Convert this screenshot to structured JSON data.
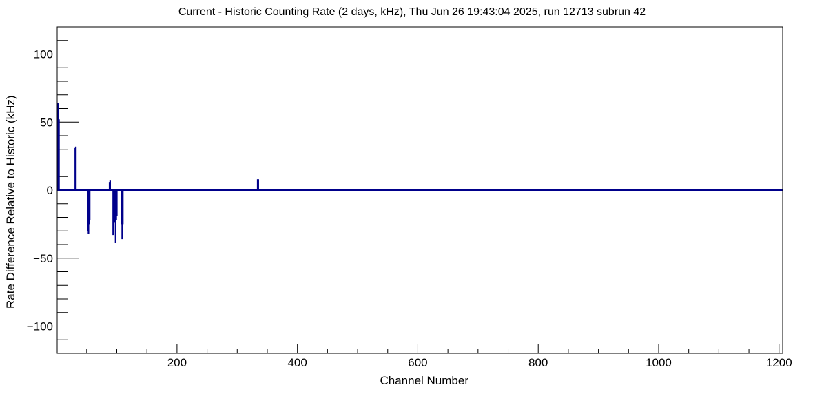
{
  "chart_data": {
    "type": "bar",
    "title": "Current - Historic Counting Rate (2 days, kHz), Thu Jun 26 19:43:04 2025, run 12713 subrun 42",
    "xlabel": "Channel Number",
    "ylabel": "Rate Difference Relative to Historic (kHz)",
    "xlim": [
      1,
      1206
    ],
    "ylim": [
      -120,
      120
    ],
    "x_ticks": [
      200,
      400,
      600,
      800,
      1000,
      1200
    ],
    "y_ticks": [
      -100,
      -50,
      0,
      50,
      100
    ],
    "x_tick_labels": [
      "200",
      "400",
      "600",
      "800",
      "1000",
      "1200"
    ],
    "y_tick_labels": [
      "−100",
      "−50",
      "0",
      "50",
      "100"
    ],
    "grid": false,
    "legend": "none",
    "series_color": "#00008b",
    "points": [
      {
        "x": 2,
        "y": 64
      },
      {
        "x": 3,
        "y": 63
      },
      {
        "x": 4,
        "y": 52
      },
      {
        "x": 31,
        "y": 31
      },
      {
        "x": 32,
        "y": 32
      },
      {
        "x": 52,
        "y": -30
      },
      {
        "x": 53,
        "y": -32
      },
      {
        "x": 54,
        "y": -25
      },
      {
        "x": 55,
        "y": -22
      },
      {
        "x": 88,
        "y": 6
      },
      {
        "x": 89,
        "y": 7
      },
      {
        "x": 94,
        "y": -33
      },
      {
        "x": 95,
        "y": -17
      },
      {
        "x": 96,
        "y": -24
      },
      {
        "x": 98,
        "y": -39
      },
      {
        "x": 99,
        "y": -22
      },
      {
        "x": 100,
        "y": -19
      },
      {
        "x": 108,
        "y": -25
      },
      {
        "x": 109,
        "y": -36
      },
      {
        "x": 110,
        "y": -25
      },
      {
        "x": 112,
        "y": -1
      },
      {
        "x": 334,
        "y": 8
      },
      {
        "x": 335,
        "y": 8
      },
      {
        "x": 376,
        "y": 1
      },
      {
        "x": 396,
        "y": -1
      },
      {
        "x": 605,
        "y": -1
      },
      {
        "x": 636,
        "y": 1
      },
      {
        "x": 814,
        "y": 1
      },
      {
        "x": 900,
        "y": -1
      },
      {
        "x": 975,
        "y": -1
      },
      {
        "x": 1083,
        "y": -1
      },
      {
        "x": 1085,
        "y": 1
      },
      {
        "x": 1160,
        "y": -1
      }
    ]
  }
}
